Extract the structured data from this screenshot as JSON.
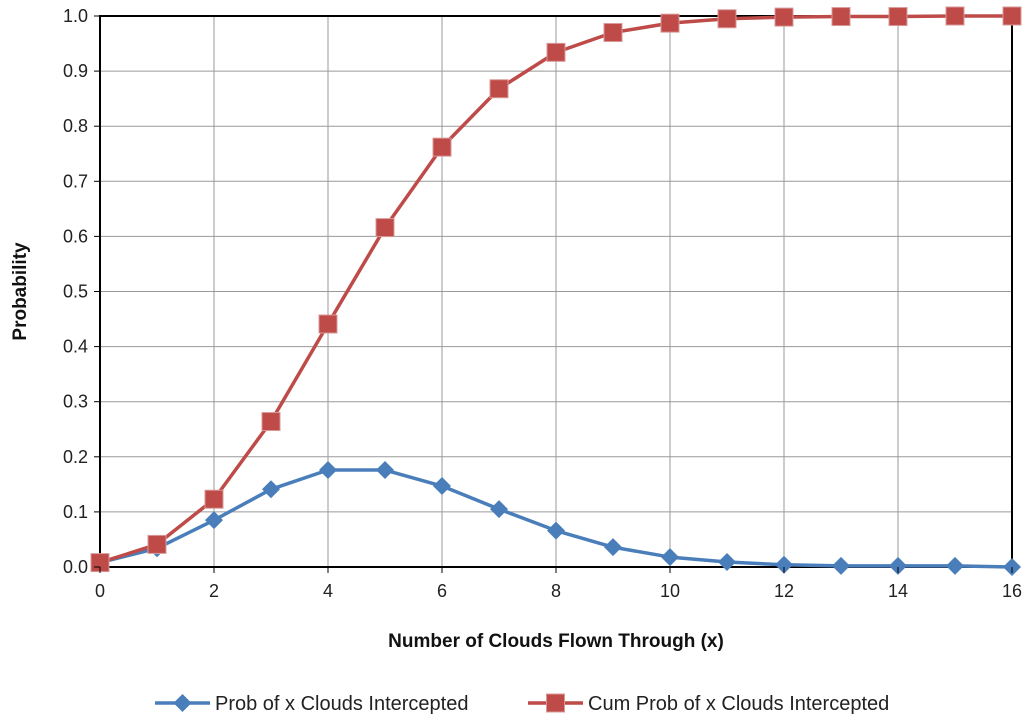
{
  "chart_data": {
    "type": "line",
    "title": "",
    "xlabel": "Number of Clouds Flown Through (x)",
    "ylabel": "Probability",
    "xlim": [
      0,
      16
    ],
    "ylim": [
      0,
      1.0
    ],
    "x_ticks": [
      "0",
      "2",
      "4",
      "6",
      "8",
      "10",
      "12",
      "14",
      "16"
    ],
    "y_ticks": [
      "0.0",
      "0.1",
      "0.2",
      "0.3",
      "0.4",
      "0.5",
      "0.6",
      "0.7",
      "0.8",
      "0.9",
      "1.0"
    ],
    "grid": {
      "vertical": true,
      "horizontal": true
    },
    "legend_position": "bottom",
    "x": [
      0,
      1,
      2,
      3,
      4,
      5,
      6,
      7,
      8,
      9,
      10,
      11,
      12,
      13,
      14,
      15,
      16
    ],
    "series": [
      {
        "name": "Prob of x Clouds Intercepted",
        "color": "#4a7ebb",
        "marker": "diamond",
        "values": [
          0.008,
          0.034,
          0.085,
          0.141,
          0.176,
          0.176,
          0.147,
          0.105,
          0.066,
          0.036,
          0.018,
          0.009,
          0.004,
          0.002,
          0.002,
          0.002,
          0.0
        ]
      },
      {
        "name": "Cum Prob of x Clouds Intercepted",
        "color": "#be4b48",
        "marker": "square",
        "values": [
          0.008,
          0.041,
          0.123,
          0.264,
          0.441,
          0.616,
          0.762,
          0.868,
          0.934,
          0.97,
          0.987,
          0.995,
          0.998,
          0.999,
          0.999,
          1.0,
          1.0
        ]
      }
    ]
  }
}
